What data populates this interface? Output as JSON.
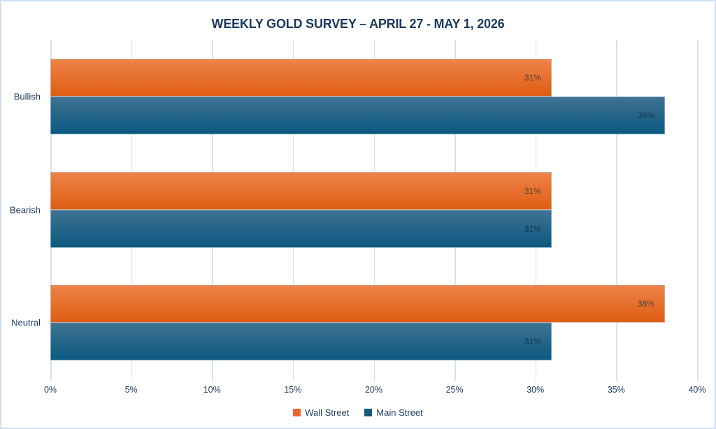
{
  "title": "WEEKLY GOLD SURVEY – APRIL 27 - MAY 1, 2026",
  "colors": {
    "wall_street_gradient_top": "#EE8349",
    "wall_street_gradient_bottom": "#DF5D13",
    "main_street_gradient_top": "#3E7293",
    "main_street_gradient_bottom": "#0C5980",
    "wall_street_legend": "#E9692C",
    "main_street_legend": "#175A7E",
    "wall_street_label_text": "#4E4238",
    "main_street_label_text": "#13344C",
    "gridline": "#D5E3F4",
    "axis_text": "#1F3A5F",
    "title_text": "#1B3A5C",
    "frame_border": "#CDE0F2"
  },
  "chart_data": {
    "type": "bar",
    "orientation": "horizontal",
    "title": "WEEKLY GOLD SURVEY – APRIL 27 - MAY 1, 2026",
    "categories": [
      "Bullish",
      "Bearish",
      "Neutral"
    ],
    "series": [
      {
        "name": "Wall Street",
        "values": [
          31,
          31,
          38
        ]
      },
      {
        "name": "Main Street",
        "values": [
          38,
          31,
          31
        ]
      }
    ],
    "data_labels": [
      [
        "31%",
        "31%",
        "38%"
      ],
      [
        "38%",
        "31%",
        "31%"
      ]
    ],
    "value_suffix": "%",
    "xlim": [
      0,
      40
    ],
    "x_tick_values": [
      0,
      5,
      10,
      15,
      20,
      25,
      30,
      35,
      40
    ],
    "x_tick_labels": [
      "0%",
      "5%",
      "10%",
      "15%",
      "20%",
      "25%",
      "30%",
      "35%",
      "40%"
    ],
    "grid": true,
    "legend_position": "bottom"
  },
  "legend": {
    "items": [
      {
        "label": "Wall Street"
      },
      {
        "label": "Main Street"
      }
    ]
  }
}
